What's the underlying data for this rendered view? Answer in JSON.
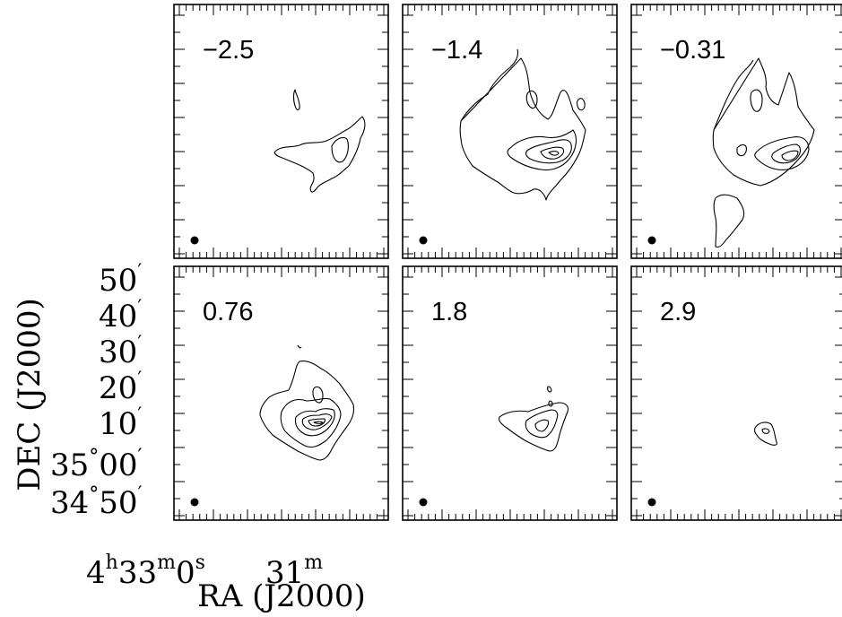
{
  "chart_data": {
    "type": "contour",
    "xlabel": "RA (J2000)",
    "ylabel": "DEC (J2000)",
    "x_ticks": [
      {
        "major": "4",
        "sup1": "h",
        "mid": "33",
        "sup2": "m",
        "minor": "0",
        "sup3": "s"
      },
      {
        "major": "31",
        "sup1": "m"
      }
    ],
    "y_ticks": [
      {
        "deg": "",
        "text": "50",
        "mark": "′"
      },
      {
        "deg": "",
        "text": "40",
        "mark": "′"
      },
      {
        "deg": "",
        "text": "30",
        "mark": "′"
      },
      {
        "deg": "",
        "text": "20",
        "mark": "′"
      },
      {
        "deg": "",
        "text": "10",
        "mark": "′"
      },
      {
        "deg": "35",
        "text": "00",
        "mark": "′",
        "deg_mark": "°"
      },
      {
        "deg": "34",
        "text": "50",
        "mark": "′",
        "deg_mark": "°"
      }
    ],
    "panels": [
      {
        "label": "−2.5"
      },
      {
        "label": "−1.4"
      },
      {
        "label": "−0.31"
      },
      {
        "label": "0.76"
      },
      {
        "label": "1.8"
      },
      {
        "label": "2.9"
      }
    ],
    "beam_marker": "filled-circle"
  }
}
